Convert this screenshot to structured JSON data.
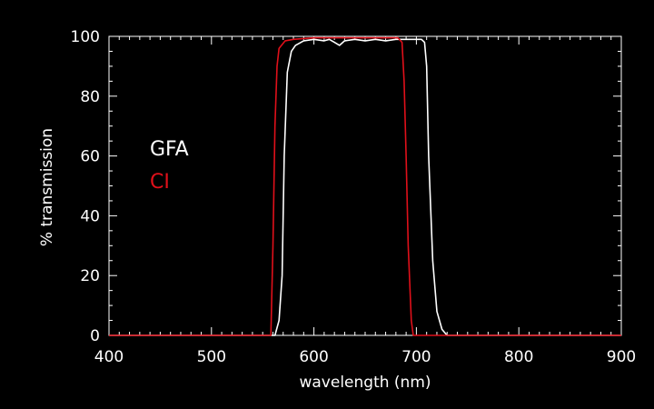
{
  "chart_data": {
    "type": "line",
    "title": "",
    "xlabel": "wavelength (nm)",
    "ylabel": "% transmission",
    "xlim": [
      400,
      900
    ],
    "ylim": [
      0,
      100
    ],
    "x_ticks": [
      400,
      500,
      600,
      700,
      800,
      900
    ],
    "y_ticks": [
      0,
      20,
      40,
      60,
      80,
      100
    ],
    "x_tick_labels": [
      "400",
      "500",
      "600",
      "700",
      "800",
      "900"
    ],
    "y_tick_labels": [
      "0",
      "20",
      "40",
      "60",
      "80",
      "100"
    ],
    "grid": false,
    "legend_position": "left",
    "background_color": "#000000",
    "axis_color": "#ffffff",
    "series": [
      {
        "name": "GFA",
        "color": "#ffffff",
        "points": [
          [
            400,
            0
          ],
          [
            555,
            0
          ],
          [
            562,
            0
          ],
          [
            566,
            5
          ],
          [
            569,
            20
          ],
          [
            571,
            60
          ],
          [
            574,
            88
          ],
          [
            578,
            95
          ],
          [
            582,
            97
          ],
          [
            590,
            98.5
          ],
          [
            600,
            99
          ],
          [
            610,
            98.5
          ],
          [
            615,
            99
          ],
          [
            620,
            98
          ],
          [
            625,
            97
          ],
          [
            630,
            98.5
          ],
          [
            640,
            99
          ],
          [
            650,
            98.5
          ],
          [
            660,
            99
          ],
          [
            670,
            98.5
          ],
          [
            680,
            99
          ],
          [
            690,
            99
          ],
          [
            700,
            99
          ],
          [
            705,
            99
          ],
          [
            708,
            98
          ],
          [
            710,
            90
          ],
          [
            712,
            60
          ],
          [
            716,
            25
          ],
          [
            720,
            8
          ],
          [
            725,
            2
          ],
          [
            730,
            0
          ],
          [
            900,
            0
          ]
        ]
      },
      {
        "name": "CI",
        "color": "#e0101a",
        "points": [
          [
            400,
            0
          ],
          [
            555,
            0
          ],
          [
            558,
            0
          ],
          [
            560,
            30
          ],
          [
            562,
            70
          ],
          [
            564,
            90
          ],
          [
            566,
            96
          ],
          [
            572,
            98.5
          ],
          [
            580,
            99
          ],
          [
            600,
            99.5
          ],
          [
            620,
            99.5
          ],
          [
            640,
            99.5
          ],
          [
            660,
            99.5
          ],
          [
            675,
            99.5
          ],
          [
            682,
            99.5
          ],
          [
            686,
            98
          ],
          [
            688,
            85
          ],
          [
            690,
            60
          ],
          [
            692,
            30
          ],
          [
            695,
            5
          ],
          [
            697,
            0
          ],
          [
            900,
            0
          ]
        ]
      }
    ]
  }
}
